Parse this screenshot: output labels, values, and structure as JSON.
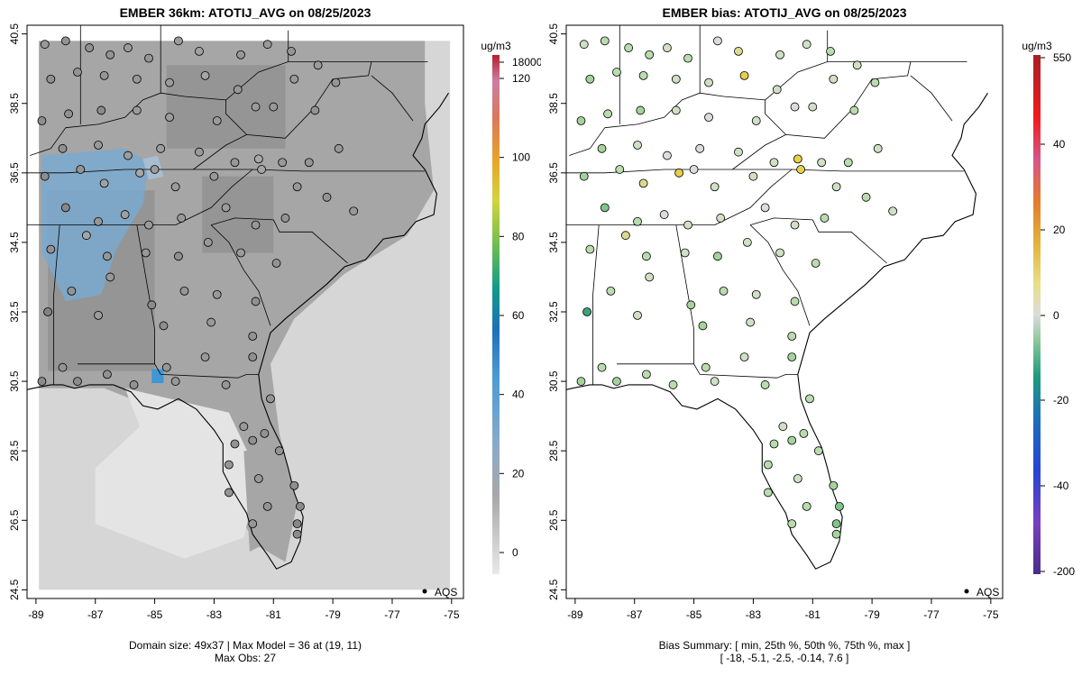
{
  "left_panel": {
    "title": "EMBER 36km: ATOTIJ_AVG on 08/25/2023",
    "summary_line1": "Domain size: 49x37 | Max Model = 36 at (19, 11)",
    "summary_line2": "Max Obs: 27",
    "legend_label": "AQS",
    "colorbar": {
      "units": "ug/m3",
      "tick_labels": [
        "0",
        "20",
        "40",
        "60",
        "80",
        "100",
        "120",
        "18000"
      ],
      "tick_values": [
        0,
        20,
        40,
        60,
        80,
        100,
        120,
        18000
      ]
    }
  },
  "right_panel": {
    "title": "EMBER bias: ATOTIJ_AVG on 08/25/2023",
    "summary_line1": "Bias Summary: [ min, 25th %, 50th %, 75th %, max ]",
    "summary_line2": "[ -18,   -5.1,   -2.5,   -0.14,   7.6 ]",
    "legend_label": "AQS",
    "colorbar": {
      "units": "ug/m3",
      "tick_labels": [
        "-200",
        "-40",
        "-20",
        "0",
        "20",
        "40",
        "550"
      ],
      "tick_values": [
        -200,
        -40,
        -20,
        0,
        20,
        40,
        550
      ]
    }
  },
  "axes": {
    "lon_labels": [
      "-89",
      "-87",
      "-85",
      "-83",
      "-81",
      "-79",
      "-77",
      "-75"
    ],
    "lon_values": [
      -89,
      -87,
      -85,
      -83,
      -81,
      -79,
      -77,
      -75
    ],
    "lat_labels": [
      "24.5",
      "26.5",
      "28.5",
      "30.5",
      "32.5",
      "34.5",
      "36.5",
      "38.5",
      "40.5"
    ],
    "lat_values": [
      24.5,
      26.5,
      28.5,
      30.5,
      32.5,
      34.5,
      36.5,
      38.5,
      40.5
    ],
    "lon_range": [
      -89.3,
      -74.6
    ],
    "lat_range": [
      24.25,
      40.75
    ]
  },
  "colors": {
    "ocean_grid": "#d6d6d6",
    "land_grid": "#a6a6a6",
    "dark_grid": "#8f8f8f",
    "blue_grid": "#7aa9cf",
    "bright_blue": "#3d98d3",
    "light_blue": "#a9bdd0"
  },
  "sites": [
    {
      "lon": -88.7,
      "lat": 40.2,
      "bias": -3
    },
    {
      "lon": -88.0,
      "lat": 40.3,
      "bias": -7
    },
    {
      "lon": -87.2,
      "lat": 40.1,
      "bias": -8
    },
    {
      "lon": -86.5,
      "lat": 39.9,
      "bias": -6
    },
    {
      "lon": -85.9,
      "lat": 40.1,
      "bias": -2
    },
    {
      "lon": -85.2,
      "lat": 39.8,
      "bias": -5
    },
    {
      "lon": -84.2,
      "lat": 40.3,
      "bias": -1
    },
    {
      "lon": -83.5,
      "lat": 40.0,
      "bias": 2
    },
    {
      "lon": -82.1,
      "lat": 39.9,
      "bias": -4
    },
    {
      "lon": -81.2,
      "lat": 40.2,
      "bias": -3
    },
    {
      "lon": -80.4,
      "lat": 40.0,
      "bias": -6
    },
    {
      "lon": -79.5,
      "lat": 39.6,
      "bias": -2
    },
    {
      "lon": -78.9,
      "lat": 39.1,
      "bias": -5
    },
    {
      "lon": -88.5,
      "lat": 39.2,
      "bias": -9
    },
    {
      "lon": -87.6,
      "lat": 39.4,
      "bias": -7
    },
    {
      "lon": -86.7,
      "lat": 39.3,
      "bias": -5
    },
    {
      "lon": -85.6,
      "lat": 39.2,
      "bias": -3
    },
    {
      "lon": -84.5,
      "lat": 39.1,
      "bias": -2
    },
    {
      "lon": -83.3,
      "lat": 39.3,
      "bias": 5
    },
    {
      "lon": -82.2,
      "lat": 38.9,
      "bias": -4
    },
    {
      "lon": -81.6,
      "lat": 38.4,
      "bias": -1
    },
    {
      "lon": -80.3,
      "lat": 39.2,
      "bias": -3
    },
    {
      "lon": -88.8,
      "lat": 38.0,
      "bias": -10
    },
    {
      "lon": -87.9,
      "lat": 38.2,
      "bias": -8
    },
    {
      "lon": -86.8,
      "lat": 38.3,
      "bias": -12
    },
    {
      "lon": -85.6,
      "lat": 38.3,
      "bias": -2
    },
    {
      "lon": -84.5,
      "lat": 38.1,
      "bias": -1
    },
    {
      "lon": -82.9,
      "lat": 38.0,
      "bias": -2
    },
    {
      "lon": -81.0,
      "lat": 38.4,
      "bias": -4
    },
    {
      "lon": -79.6,
      "lat": 38.3,
      "bias": -6
    },
    {
      "lon": -88.1,
      "lat": 37.2,
      "bias": -9
    },
    {
      "lon": -86.9,
      "lat": 37.3,
      "bias": -3
    },
    {
      "lon": -85.9,
      "lat": 37.0,
      "bias": -1
    },
    {
      "lon": -84.8,
      "lat": 37.2,
      "bias": 0
    },
    {
      "lon": -83.5,
      "lat": 37.1,
      "bias": -2
    },
    {
      "lon": -82.3,
      "lat": 36.8,
      "bias": -4
    },
    {
      "lon": -81.5,
      "lat": 36.9,
      "bias": 7
    },
    {
      "lon": -80.7,
      "lat": 36.8,
      "bias": -3
    },
    {
      "lon": -79.8,
      "lat": 36.8,
      "bias": -5
    },
    {
      "lon": -78.8,
      "lat": 37.2,
      "bias": -4
    },
    {
      "lon": -88.7,
      "lat": 36.4,
      "bias": -11
    },
    {
      "lon": -87.5,
      "lat": 36.6,
      "bias": -7
    },
    {
      "lon": -86.7,
      "lat": 36.2,
      "bias": 2
    },
    {
      "lon": -85.5,
      "lat": 36.5,
      "bias": 6
    },
    {
      "lon": -85.0,
      "lat": 36.6,
      "bias": -1
    },
    {
      "lon": -84.3,
      "lat": 36.1,
      "bias": -2
    },
    {
      "lon": -83.0,
      "lat": 36.4,
      "bias": -3
    },
    {
      "lon": -81.4,
      "lat": 36.6,
      "bias": 5
    },
    {
      "lon": -80.2,
      "lat": 36.1,
      "bias": -4
    },
    {
      "lon": -79.2,
      "lat": 35.8,
      "bias": -6
    },
    {
      "lon": -78.3,
      "lat": 35.4,
      "bias": -3
    },
    {
      "lon": -88.0,
      "lat": 35.5,
      "bias": -14
    },
    {
      "lon": -86.9,
      "lat": 35.1,
      "bias": -5
    },
    {
      "lon": -86.0,
      "lat": 35.3,
      "bias": 1
    },
    {
      "lon": -85.2,
      "lat": 35.0,
      "bias": -2
    },
    {
      "lon": -84.1,
      "lat": 35.2,
      "bias": -3
    },
    {
      "lon": -82.6,
      "lat": 35.5,
      "bias": -1
    },
    {
      "lon": -81.6,
      "lat": 35.0,
      "bias": -4
    },
    {
      "lon": -80.6,
      "lat": 35.2,
      "bias": -6
    },
    {
      "lon": -88.5,
      "lat": 34.3,
      "bias": -8
    },
    {
      "lon": -87.3,
      "lat": 34.7,
      "bias": 4
    },
    {
      "lon": -86.6,
      "lat": 34.1,
      "bias": -5
    },
    {
      "lon": -85.3,
      "lat": 34.2,
      "bias": -4
    },
    {
      "lon": -84.2,
      "lat": 34.1,
      "bias": -9
    },
    {
      "lon": -83.2,
      "lat": 34.5,
      "bias": -3
    },
    {
      "lon": -82.1,
      "lat": 34.2,
      "bias": -2
    },
    {
      "lon": -80.9,
      "lat": 33.9,
      "bias": -7
    },
    {
      "lon": -87.8,
      "lat": 33.1,
      "bias": -6
    },
    {
      "lon": -86.5,
      "lat": 33.5,
      "bias": -4
    },
    {
      "lon": -85.1,
      "lat": 32.7,
      "bias": -12
    },
    {
      "lon": -84.0,
      "lat": 33.1,
      "bias": -5
    },
    {
      "lon": -82.9,
      "lat": 33.0,
      "bias": -3
    },
    {
      "lon": -81.6,
      "lat": 32.8,
      "bias": -8
    },
    {
      "lon": -88.6,
      "lat": 32.5,
      "bias": -18
    },
    {
      "lon": -86.9,
      "lat": 32.4,
      "bias": -2
    },
    {
      "lon": -84.7,
      "lat": 32.1,
      "bias": -10
    },
    {
      "lon": -83.1,
      "lat": 32.2,
      "bias": -4
    },
    {
      "lon": -81.7,
      "lat": 31.8,
      "bias": -7
    },
    {
      "lon": -88.1,
      "lat": 30.9,
      "bias": -6
    },
    {
      "lon": -86.6,
      "lat": 30.7,
      "bias": -8
    },
    {
      "lon": -84.6,
      "lat": 30.9,
      "bias": -5
    },
    {
      "lon": -83.3,
      "lat": 31.2,
      "bias": -3
    },
    {
      "lon": -81.7,
      "lat": 31.2,
      "bias": -9
    },
    {
      "lon": -88.8,
      "lat": 30.5,
      "bias": -12
    },
    {
      "lon": -87.6,
      "lat": 30.5,
      "bias": -11
    },
    {
      "lon": -85.7,
      "lat": 30.4,
      "bias": -7
    },
    {
      "lon": -84.3,
      "lat": 30.5,
      "bias": -4
    },
    {
      "lon": -82.6,
      "lat": 30.4,
      "bias": -5
    },
    {
      "lon": -81.1,
      "lat": 30.0,
      "bias": -6
    },
    {
      "lon": -82.0,
      "lat": 29.2,
      "bias": -3
    },
    {
      "lon": -81.3,
      "lat": 29.0,
      "bias": -8
    },
    {
      "lon": -82.3,
      "lat": 28.7,
      "bias": -7
    },
    {
      "lon": -81.7,
      "lat": 28.8,
      "bias": -9
    },
    {
      "lon": -80.8,
      "lat": 28.5,
      "bias": -6
    },
    {
      "lon": -82.5,
      "lat": 28.1,
      "bias": -5
    },
    {
      "lon": -81.5,
      "lat": 27.7,
      "bias": -4
    },
    {
      "lon": -80.3,
      "lat": 27.5,
      "bias": -10
    },
    {
      "lon": -82.5,
      "lat": 27.3,
      "bias": -6
    },
    {
      "lon": -81.2,
      "lat": 26.9,
      "bias": -7
    },
    {
      "lon": -80.1,
      "lat": 26.9,
      "bias": -13
    },
    {
      "lon": -80.2,
      "lat": 26.4,
      "bias": -15
    },
    {
      "lon": -81.7,
      "lat": 26.4,
      "bias": -5
    },
    {
      "lon": -80.2,
      "lat": 26.1,
      "bias": -12
    }
  ]
}
